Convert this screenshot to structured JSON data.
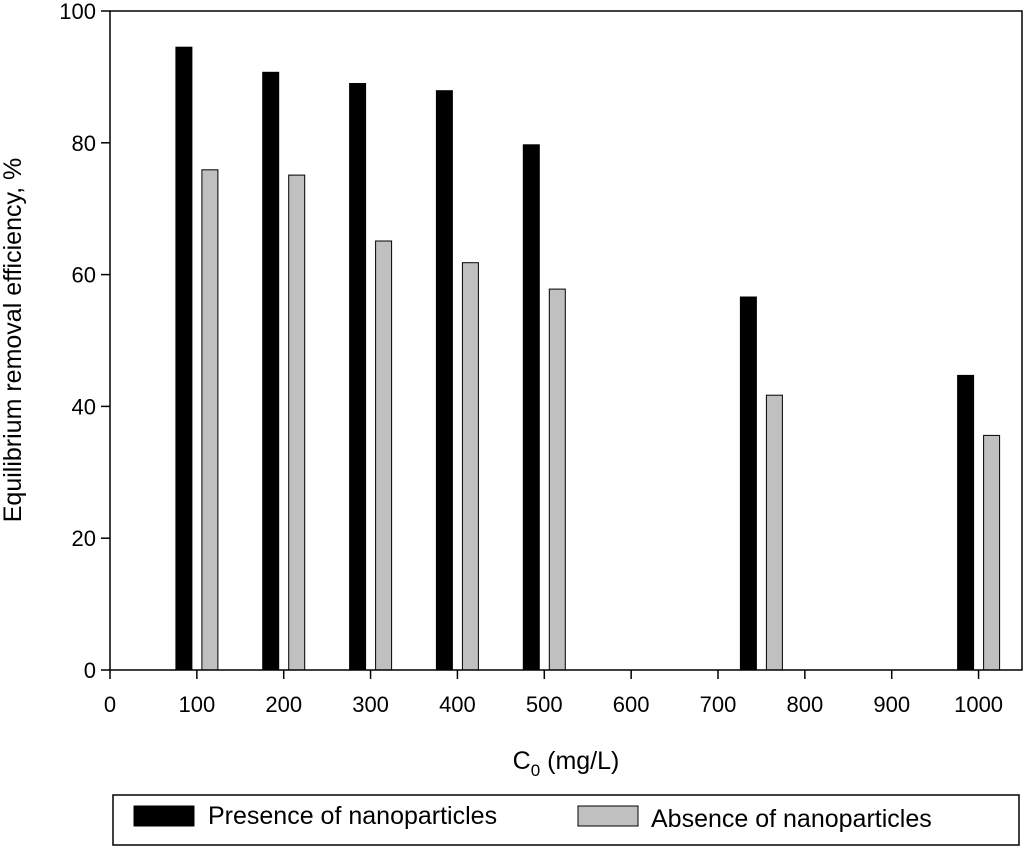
{
  "chart_data": {
    "type": "bar",
    "xlabel_main": "C",
    "xlabel_sub": "0",
    "xlabel_rest": " (mg/L)",
    "ylabel": "Equilibrium removal efficiency, %",
    "xlim": [
      0,
      1050
    ],
    "ylim": [
      0,
      100
    ],
    "x_ticks": [
      0,
      100,
      200,
      300,
      400,
      500,
      600,
      700,
      800,
      900,
      1000
    ],
    "y_ticks": [
      0,
      20,
      40,
      60,
      80,
      100
    ],
    "x": [
      100,
      200,
      300,
      400,
      500,
      750,
      1000
    ],
    "series": [
      {
        "name": "Presence of nanoparticles",
        "color": "#000000",
        "values": [
          94.5,
          90.7,
          89.0,
          87.9,
          79.7,
          56.6,
          44.7
        ]
      },
      {
        "name": "Absence of nanoparticles",
        "color": "#c0c0c0",
        "values": [
          75.9,
          75.1,
          65.1,
          61.8,
          57.8,
          41.7,
          35.6
        ]
      }
    ],
    "legend_position": "bottom"
  }
}
